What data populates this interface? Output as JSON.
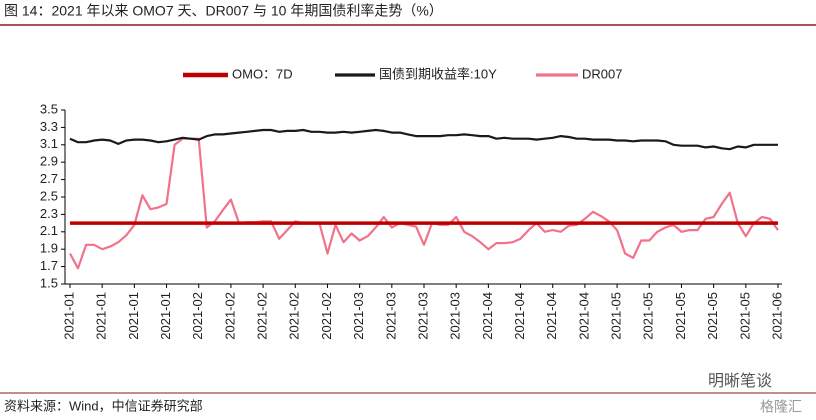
{
  "chart_data": {
    "type": "line",
    "title": "图 14：2021 年以来 OMO7 天、DR007 与 10 年期国债利率走势（%）",
    "source": "资料来源：Wind，中信证券研究部",
    "watermark": "明晰笔谈",
    "watermark2": "格隆汇",
    "categories": [
      "2021-01",
      null,
      null,
      null,
      "2021-01",
      null,
      null,
      null,
      "2021-01",
      null,
      null,
      null,
      "2021-01",
      null,
      null,
      null,
      "2021-02",
      null,
      null,
      null,
      "2021-02",
      null,
      null,
      null,
      "2021-02",
      null,
      null,
      null,
      "2021-02",
      null,
      null,
      null,
      "2021-02",
      null,
      null,
      null,
      "2021-03",
      null,
      null,
      null,
      "2021-03",
      null,
      null,
      null,
      "2021-03",
      null,
      null,
      null,
      "2021-03",
      null,
      null,
      null,
      "2021-04",
      null,
      null,
      null,
      "2021-04",
      null,
      null,
      null,
      "2021-04",
      null,
      null,
      null,
      "2021-04",
      null,
      null,
      null,
      "2021-05",
      null,
      null,
      null,
      "2021-05",
      null,
      null,
      null,
      "2021-05",
      null,
      null,
      null,
      "2021-05",
      null,
      null,
      null,
      "2021-05",
      null,
      null,
      null,
      "2021-06"
    ],
    "series": [
      {
        "name": "OMO：7D",
        "color": "#c00000",
        "width": 3.5,
        "values": [
          2.2,
          2.2,
          2.2,
          2.2,
          2.2,
          2.2,
          2.2,
          2.2,
          2.2,
          2.2,
          2.2,
          2.2,
          2.2,
          2.2,
          2.2,
          2.2,
          2.2,
          2.2,
          2.2,
          2.2,
          2.2,
          2.2,
          2.2,
          2.2,
          2.2,
          2.2,
          2.2,
          2.2,
          2.2,
          2.2,
          2.2,
          2.2,
          2.2,
          2.2,
          2.2,
          2.2,
          2.2,
          2.2,
          2.2,
          2.2,
          2.2,
          2.2,
          2.2,
          2.2,
          2.2,
          2.2,
          2.2,
          2.2,
          2.2,
          2.2,
          2.2,
          2.2,
          2.2,
          2.2,
          2.2,
          2.2,
          2.2,
          2.2,
          2.2,
          2.2,
          2.2,
          2.2,
          2.2,
          2.2,
          2.2,
          2.2,
          2.2,
          2.2,
          2.2,
          2.2,
          2.2,
          2.2,
          2.2,
          2.2,
          2.2,
          2.2,
          2.2,
          2.2,
          2.2,
          2.2,
          2.2,
          2.2,
          2.2,
          2.2,
          2.2,
          2.2,
          2.2,
          2.2,
          2.2
        ]
      },
      {
        "name": "国债到期收益率:10Y",
        "color": "#1a1a1a",
        "width": 2.2,
        "values": [
          3.17,
          3.13,
          3.13,
          3.15,
          3.16,
          3.15,
          3.11,
          3.15,
          3.16,
          3.16,
          3.15,
          3.13,
          3.14,
          3.16,
          3.18,
          3.17,
          3.16,
          3.2,
          3.22,
          3.22,
          3.23,
          3.24,
          3.25,
          3.26,
          3.27,
          3.27,
          3.25,
          3.26,
          3.26,
          3.27,
          3.25,
          3.25,
          3.24,
          3.24,
          3.25,
          3.24,
          3.25,
          3.26,
          3.27,
          3.26,
          3.24,
          3.24,
          3.22,
          3.2,
          3.2,
          3.2,
          3.2,
          3.21,
          3.21,
          3.22,
          3.21,
          3.2,
          3.2,
          3.17,
          3.18,
          3.17,
          3.17,
          3.17,
          3.16,
          3.17,
          3.18,
          3.2,
          3.19,
          3.17,
          3.17,
          3.16,
          3.16,
          3.16,
          3.15,
          3.15,
          3.14,
          3.15,
          3.15,
          3.15,
          3.14,
          3.1,
          3.09,
          3.09,
          3.09,
          3.07,
          3.08,
          3.06,
          3.05,
          3.08,
          3.07,
          3.1,
          3.1,
          3.1,
          3.1
        ]
      },
      {
        "name": "DR007",
        "color": "#f2728a",
        "width": 2.2,
        "values": [
          1.85,
          1.68,
          1.95,
          1.95,
          1.9,
          1.93,
          1.98,
          2.06,
          2.18,
          2.52,
          2.36,
          2.38,
          2.42,
          3.1,
          3.17,
          3.17,
          3.17,
          2.15,
          2.22,
          2.35,
          2.47,
          2.2,
          2.21,
          2.21,
          2.22,
          2.22,
          2.02,
          2.12,
          2.22,
          2.2,
          2.2,
          2.2,
          1.85,
          2.18,
          1.98,
          2.08,
          2.0,
          2.05,
          2.15,
          2.27,
          2.15,
          2.2,
          2.18,
          2.16,
          1.95,
          2.2,
          2.18,
          2.18,
          2.27,
          2.1,
          2.05,
          1.98,
          1.9,
          1.97,
          1.97,
          1.98,
          2.02,
          2.12,
          2.2,
          2.1,
          2.12,
          2.1,
          2.17,
          2.18,
          2.25,
          2.33,
          2.28,
          2.22,
          2.12,
          1.85,
          1.8,
          2.0,
          2.0,
          2.1,
          2.15,
          2.18,
          2.1,
          2.12,
          2.12,
          2.25,
          2.27,
          2.42,
          2.55,
          2.2,
          2.05,
          2.2,
          2.27,
          2.25,
          2.12
        ]
      }
    ],
    "ylim": [
      1.5,
      3.5
    ],
    "yticks": [
      1.5,
      1.7,
      1.9,
      2.1,
      2.3,
      2.5,
      2.7,
      2.9,
      3.1,
      3.3,
      3.5
    ],
    "legend": "top"
  }
}
